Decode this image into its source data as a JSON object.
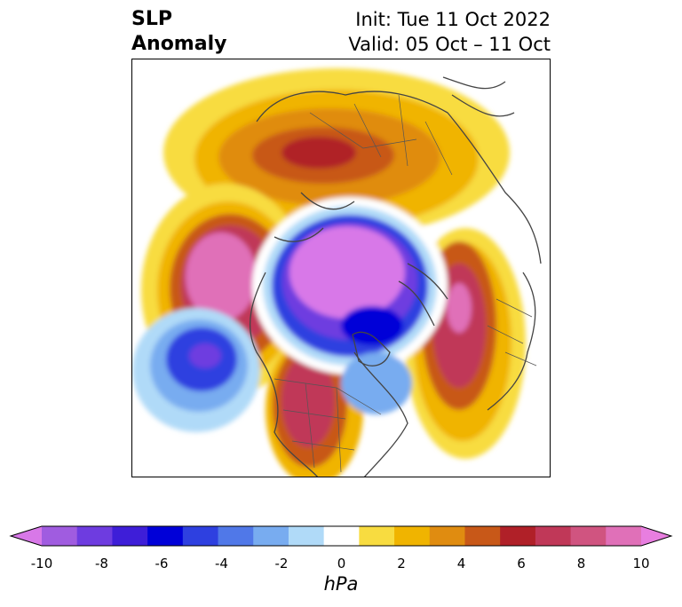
{
  "title": {
    "left_line1": "SLP",
    "left_line2": "Anomaly",
    "right_line1": "Init: Tue 11 Oct 2022",
    "right_line2": "Valid: 05 Oct – 11 Oct"
  },
  "map": {
    "projection": "north-polar-stereographic",
    "field": "sea level pressure anomaly"
  },
  "colorbar": {
    "unit": "hPa",
    "ticks": [
      "-10",
      "-8",
      "-6",
      "-4",
      "-2",
      "0",
      "2",
      "4",
      "6",
      "8",
      "10"
    ],
    "tick_values": [
      -10,
      -8,
      -6,
      -4,
      -2,
      0,
      2,
      4,
      6,
      8,
      10
    ],
    "colors": [
      "#d878e8",
      "#a05ce0",
      "#6e3ce0",
      "#3e1ed8",
      "#0000d8",
      "#2e40e0",
      "#5078e8",
      "#78acf0",
      "#b0daf8",
      "#ffffff",
      "#f8dc40",
      "#f0b400",
      "#e08c10",
      "#c85818",
      "#b02028",
      "#c03858",
      "#d05480",
      "#e070b8",
      "#e87ee0"
    ]
  }
}
